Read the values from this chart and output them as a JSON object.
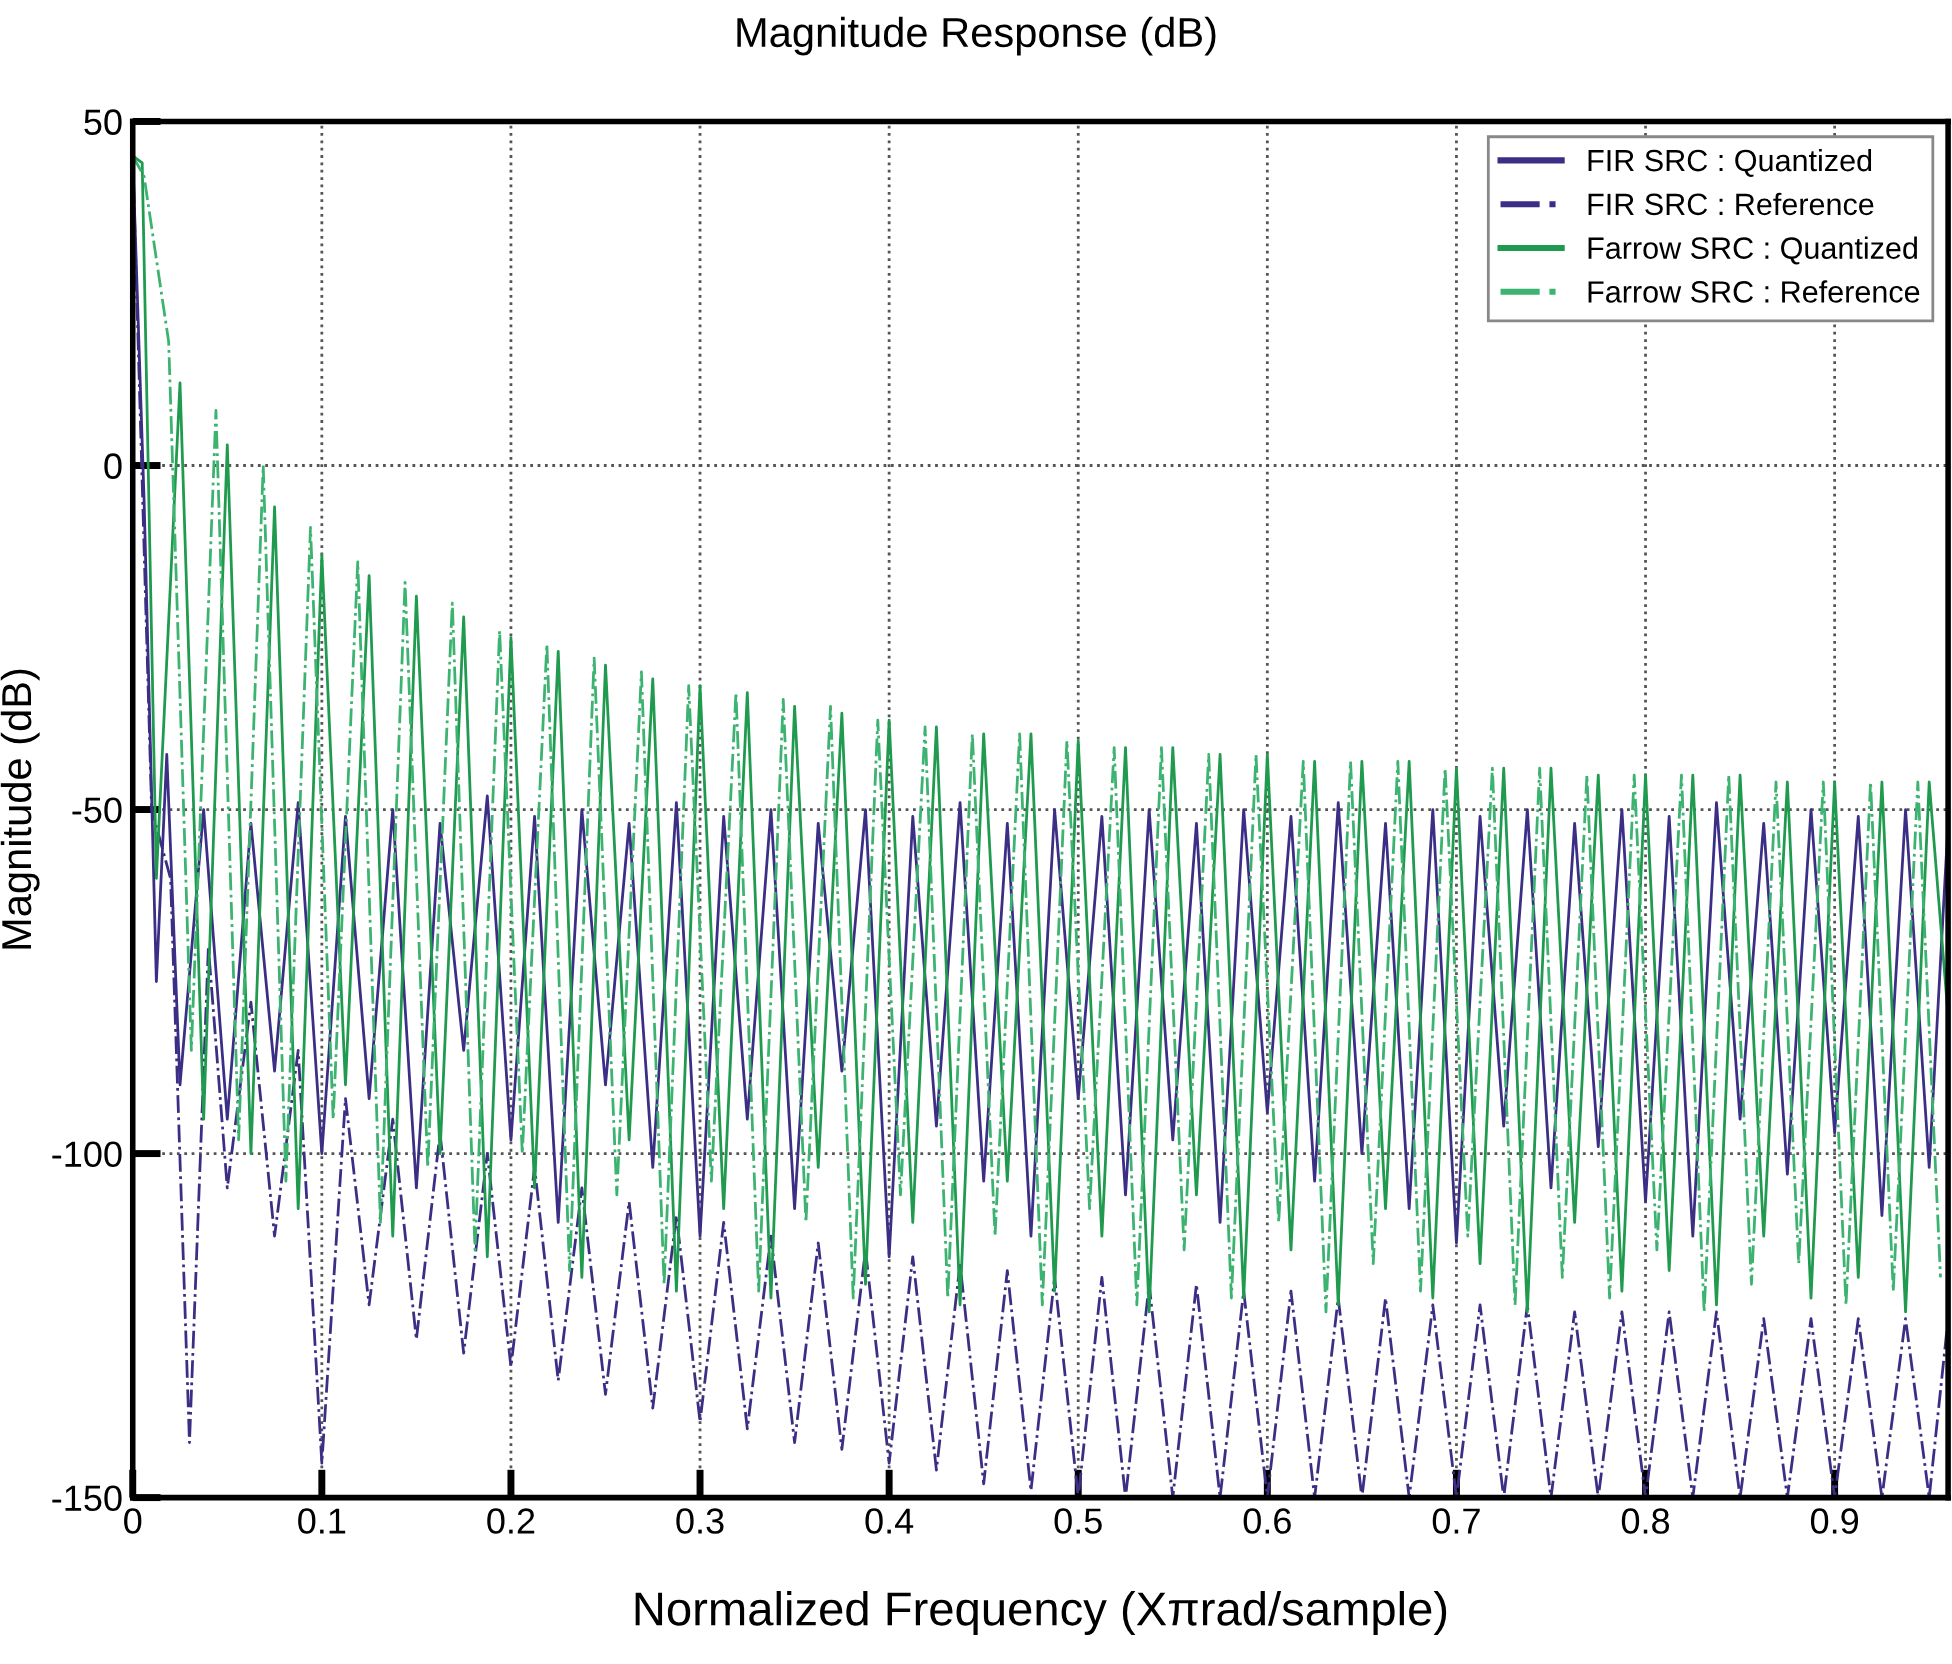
{
  "chart_data": {
    "type": "line",
    "title": "Magnitude Response (dB)",
    "xlabel": "Normalized Frequency (Xπrad/sample)",
    "ylabel": "Magnitude (dB)",
    "xlim": [
      0,
      0.96
    ],
    "xticks": [
      0,
      0.1,
      0.2,
      0.3,
      0.4,
      0.5,
      0.6,
      0.7,
      0.8,
      0.9
    ],
    "ylim": [
      -150,
      50
    ],
    "yticks": [
      50,
      0,
      -50,
      -100,
      -150
    ],
    "grid": true,
    "legend": "top right",
    "series": [
      {
        "name": "FIR SRC : Quantized",
        "color": "#3a2f85",
        "line_style": "solid",
        "x": [
          0,
          0.006,
          0.0125,
          0.018,
          0.025,
          0.0375,
          0.05,
          0.0625,
          0.075,
          0.0875,
          0.1,
          0.1125,
          0.125,
          0.1375,
          0.15,
          0.1625,
          0.175,
          0.1875,
          0.2,
          0.2125,
          0.225,
          0.2375,
          0.25,
          0.2625,
          0.275,
          0.2875,
          0.3,
          0.3125,
          0.325,
          0.3375,
          0.35,
          0.3625,
          0.375,
          0.3875,
          0.4,
          0.4125,
          0.425,
          0.4375,
          0.45,
          0.4625,
          0.475,
          0.4875,
          0.5,
          0.5125,
          0.525,
          0.5375,
          0.55,
          0.5625,
          0.575,
          0.5875,
          0.6,
          0.6125,
          0.625,
          0.6375,
          0.65,
          0.6625,
          0.675,
          0.6875,
          0.7,
          0.7125,
          0.725,
          0.7375,
          0.75,
          0.7625,
          0.775,
          0.7875,
          0.8,
          0.8125,
          0.825,
          0.8375,
          0.85,
          0.8625,
          0.875,
          0.8875,
          0.9,
          0.9125,
          0.925,
          0.9375,
          0.95,
          0.96
        ],
        "values": [
          45,
          -5,
          -75,
          -42,
          -90,
          -50,
          -95,
          -52,
          -88,
          -49,
          -100,
          -51,
          -92,
          -50,
          -105,
          -52,
          -85,
          -48,
          -98,
          -51,
          -110,
          -50,
          -90,
          -52,
          -102,
          -49,
          -112,
          -51,
          -95,
          -50,
          -108,
          -52,
          -88,
          -50,
          -115,
          -51,
          -96,
          -49,
          -104,
          -52,
          -112,
          -50,
          -92,
          -51,
          -106,
          -50,
          -98,
          -52,
          -110,
          -50,
          -94,
          -51,
          -104,
          -49,
          -100,
          -52,
          -108,
          -50,
          -113,
          -51,
          -96,
          -50,
          -105,
          -52,
          -99,
          -50,
          -107,
          -51,
          -112,
          -49,
          -95,
          -52,
          -103,
          -50,
          -97,
          -51,
          -109,
          -50,
          -102,
          -52
        ]
      },
      {
        "name": "FIR SRC : Reference",
        "color": "#3a2f85",
        "line_style": "dashdot",
        "x": [
          0,
          0.01,
          0.02,
          0.03,
          0.04,
          0.05,
          0.0625,
          0.075,
          0.0875,
          0.1,
          0.1125,
          0.125,
          0.1375,
          0.15,
          0.1625,
          0.175,
          0.1875,
          0.2,
          0.2125,
          0.225,
          0.2375,
          0.25,
          0.2625,
          0.275,
          0.2875,
          0.3,
          0.3125,
          0.325,
          0.3375,
          0.35,
          0.3625,
          0.375,
          0.3875,
          0.4,
          0.4125,
          0.425,
          0.4375,
          0.45,
          0.4625,
          0.475,
          0.4875,
          0.5,
          0.5125,
          0.525,
          0.5375,
          0.55,
          0.5625,
          0.575,
          0.5875,
          0.6,
          0.6125,
          0.625,
          0.6375,
          0.65,
          0.6625,
          0.675,
          0.6875,
          0.7,
          0.7125,
          0.725,
          0.7375,
          0.75,
          0.7625,
          0.775,
          0.7875,
          0.8,
          0.8125,
          0.825,
          0.8375,
          0.85,
          0.8625,
          0.875,
          0.8875,
          0.9,
          0.9125,
          0.925,
          0.9375,
          0.95,
          0.96
        ],
        "values": [
          45,
          -50,
          -60,
          -142,
          -70,
          -105,
          -78,
          -112,
          -85,
          -145,
          -92,
          -122,
          -95,
          -127,
          -97,
          -129,
          -100,
          -131,
          -102,
          -133,
          -105,
          -135,
          -107,
          -137,
          -109,
          -139,
          -110,
          -140,
          -112,
          -142,
          -113,
          -143,
          -114,
          -145,
          -115,
          -146,
          -116,
          -148,
          -117,
          -149,
          -118,
          -150,
          -118,
          -150,
          -119,
          -150,
          -119,
          -150,
          -120,
          -150,
          -120,
          -150,
          -121,
          -150,
          -121,
          -150,
          -122,
          -150,
          -122,
          -150,
          -122,
          -150,
          -123,
          -150,
          -123,
          -150,
          -123,
          -150,
          -123,
          -150,
          -124,
          -150,
          -124,
          -150,
          -124,
          -150,
          -124,
          -150,
          -124
        ]
      },
      {
        "name": "Farrow SRC : Quantized",
        "color": "#1f9a4e",
        "line_style": "solid",
        "x": [
          0,
          0.005,
          0.0125,
          0.025,
          0.0375,
          0.05,
          0.0625,
          0.075,
          0.0875,
          0.1,
          0.1125,
          0.125,
          0.1375,
          0.15,
          0.1625,
          0.175,
          0.1875,
          0.2,
          0.2125,
          0.225,
          0.2375,
          0.25,
          0.2625,
          0.275,
          0.2875,
          0.3,
          0.3125,
          0.325,
          0.3375,
          0.35,
          0.3625,
          0.375,
          0.3875,
          0.4,
          0.4125,
          0.425,
          0.4375,
          0.45,
          0.4625,
          0.475,
          0.4875,
          0.5,
          0.5125,
          0.525,
          0.5375,
          0.55,
          0.5625,
          0.575,
          0.5875,
          0.6,
          0.6125,
          0.625,
          0.6375,
          0.65,
          0.6625,
          0.675,
          0.6875,
          0.7,
          0.7125,
          0.725,
          0.7375,
          0.75,
          0.7625,
          0.775,
          0.7875,
          0.8,
          0.8125,
          0.825,
          0.8375,
          0.85,
          0.8625,
          0.875,
          0.8875,
          0.9,
          0.9125,
          0.925,
          0.9375,
          0.95,
          0.96
        ],
        "values": [
          45,
          44,
          -60,
          12,
          -95,
          3,
          -100,
          -6,
          -108,
          -13,
          -90,
          -16,
          -112,
          -19,
          -100,
          -22,
          -115,
          -25,
          -105,
          -27,
          -118,
          -29,
          -98,
          -31,
          -120,
          -32,
          -108,
          -33,
          -121,
          -35,
          -102,
          -36,
          -119,
          -37,
          -110,
          -38,
          -122,
          -39,
          -104,
          -39,
          -120,
          -40,
          -112,
          -41,
          -123,
          -41,
          -106,
          -42,
          -121,
          -42,
          -114,
          -43,
          -122,
          -43,
          -108,
          -43,
          -121,
          -44,
          -116,
          -44,
          -123,
          -44,
          -110,
          -45,
          -120,
          -45,
          -117,
          -45,
          -122,
          -45,
          -112,
          -46,
          -121,
          -46,
          -118,
          -46,
          -123,
          -46,
          -80
        ]
      },
      {
        "name": "Farrow SRC : Reference",
        "color": "#3cb371",
        "line_style": "dashdot",
        "x": [
          0,
          0.006,
          0.019,
          0.031,
          0.044,
          0.056,
          0.069,
          0.081,
          0.094,
          0.106,
          0.119,
          0.131,
          0.144,
          0.156,
          0.169,
          0.181,
          0.194,
          0.206,
          0.219,
          0.231,
          0.244,
          0.256,
          0.269,
          0.281,
          0.294,
          0.306,
          0.319,
          0.331,
          0.344,
          0.356,
          0.369,
          0.381,
          0.394,
          0.406,
          0.419,
          0.431,
          0.444,
          0.456,
          0.469,
          0.481,
          0.494,
          0.506,
          0.519,
          0.531,
          0.544,
          0.556,
          0.569,
          0.581,
          0.594,
          0.606,
          0.619,
          0.631,
          0.644,
          0.656,
          0.669,
          0.681,
          0.694,
          0.706,
          0.719,
          0.731,
          0.744,
          0.756,
          0.769,
          0.781,
          0.794,
          0.806,
          0.819,
          0.831,
          0.844,
          0.856,
          0.869,
          0.881,
          0.894,
          0.906,
          0.919,
          0.931,
          0.944,
          0.956
        ],
        "values": [
          45,
          42,
          18,
          -85,
          8,
          -98,
          0,
          -104,
          -9,
          -95,
          -14,
          -110,
          -17,
          -102,
          -20,
          -114,
          -24,
          -100,
          -26,
          -117,
          -28,
          -106,
          -30,
          -119,
          -32,
          -104,
          -33,
          -120,
          -34,
          -110,
          -35,
          -121,
          -37,
          -106,
          -38,
          -121,
          -39,
          -112,
          -39,
          -122,
          -40,
          -108,
          -41,
          -122,
          -41,
          -114,
          -42,
          -121,
          -42,
          -110,
          -43,
          -123,
          -43,
          -116,
          -43,
          -120,
          -44,
          -112,
          -44,
          -122,
          -44,
          -118,
          -45,
          -121,
          -45,
          -114,
          -45,
          -123,
          -45,
          -119,
          -46,
          -116,
          -46,
          -122,
          -46,
          -120,
          -46,
          -118
        ]
      }
    ]
  }
}
